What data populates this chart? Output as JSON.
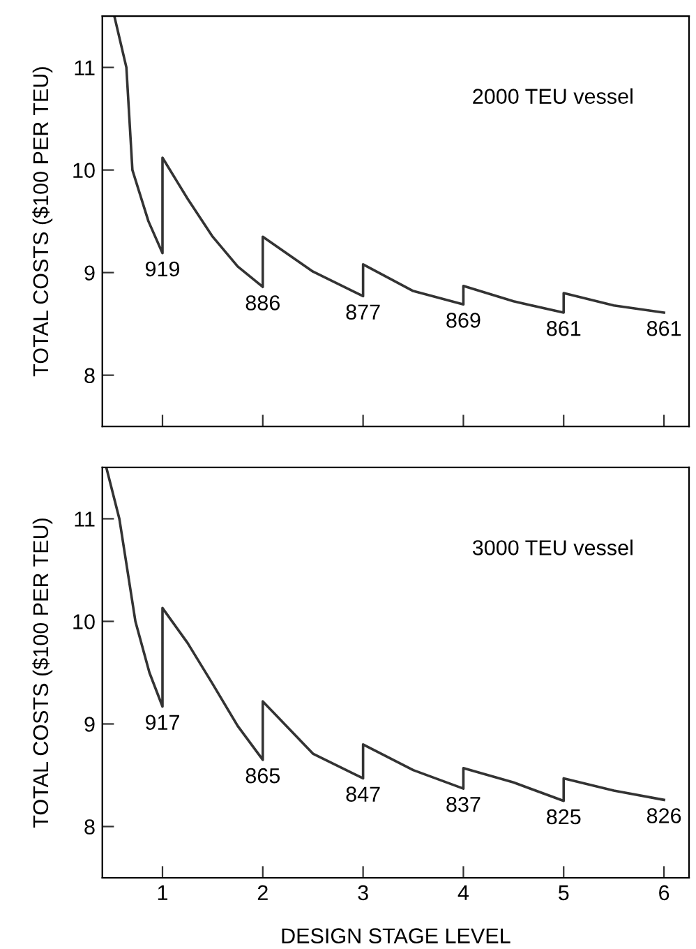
{
  "chart_data": [
    {
      "type": "line",
      "ylabel": "TOTAL COSTS ($100 PER TEU)",
      "xlim": [
        0.4,
        6.25
      ],
      "ylim": [
        7.5,
        11.5
      ],
      "xticks": [
        {
          "value": 1,
          "label": null
        },
        {
          "value": 2,
          "label": null
        },
        {
          "value": 3,
          "label": null
        },
        {
          "value": 4,
          "label": null
        },
        {
          "value": 5,
          "label": null
        },
        {
          "value": 6,
          "label": null
        }
      ],
      "yticks": [
        8,
        9,
        10,
        11
      ],
      "tick_labels": "y",
      "series": [
        {
          "color": "#333333",
          "x": [
            0.52,
            0.64,
            0.7,
            0.86,
            1,
            1,
            1.25,
            1.5,
            1.75,
            2,
            2,
            2.5,
            3,
            3,
            3.5,
            4,
            4,
            4.5,
            5,
            5,
            5.5,
            6
          ],
          "values": [
            11.5,
            11,
            10,
            9.5,
            9.19,
            10.12,
            9.72,
            9.35,
            9.06,
            8.86,
            9.35,
            9.01,
            8.77,
            9.08,
            8.82,
            8.69,
            8.87,
            8.72,
            8.61,
            8.8,
            8.68,
            8.61
          ]
        }
      ],
      "annotations": [
        "2000 TEU vessel",
        {
          "text": "919",
          "x": 1,
          "y": 9.19
        },
        {
          "text": "886",
          "x": 2,
          "y": 8.86
        },
        {
          "text": "877",
          "x": 3,
          "y": 8.77
        },
        {
          "text": "869",
          "x": 4,
          "y": 8.69
        },
        {
          "text": "861",
          "x": 5,
          "y": 8.61
        },
        {
          "text": "861",
          "x": 6,
          "y": 8.61
        }
      ]
    },
    {
      "type": "line",
      "xlabel": "DESIGN STAGE LEVEL",
      "ylabel": "TOTAL COSTS ($100 PER TEU)",
      "xlim": [
        0.4,
        6.25
      ],
      "ylim": [
        7.5,
        11.5
      ],
      "xticks": [
        1,
        2,
        3,
        4,
        5,
        6
      ],
      "yticks": [
        8,
        9,
        10,
        11
      ],
      "series": [
        {
          "color": "#333333",
          "x": [
            0.44,
            0.57,
            0.73,
            0.87,
            1,
            1,
            1.25,
            1.5,
            1.75,
            2,
            2,
            2.5,
            3,
            3,
            3.5,
            4,
            4,
            4.5,
            5,
            5,
            5.5,
            6
          ],
          "values": [
            11.5,
            11,
            10,
            9.5,
            9.17,
            10.13,
            9.79,
            9.39,
            8.98,
            8.65,
            9.22,
            8.71,
            8.47,
            8.8,
            8.55,
            8.37,
            8.57,
            8.43,
            8.25,
            8.47,
            8.35,
            8.26
          ]
        }
      ],
      "annotations": [
        "3000 TEU vessel",
        {
          "text": "917",
          "x": 1,
          "y": 9.17
        },
        {
          "text": "865",
          "x": 2,
          "y": 8.65
        },
        {
          "text": "847",
          "x": 3,
          "y": 8.47
        },
        {
          "text": "837",
          "x": 4,
          "y": 8.37
        },
        {
          "text": "825",
          "x": 5,
          "y": 8.25
        },
        {
          "text": "826",
          "x": 6,
          "y": 8.26
        }
      ]
    }
  ]
}
